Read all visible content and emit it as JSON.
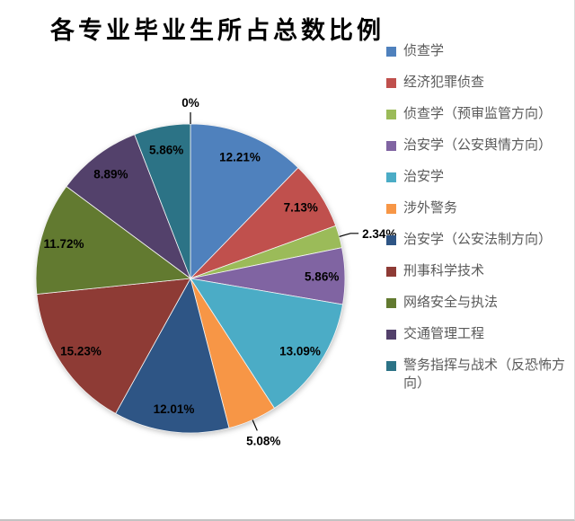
{
  "title": "各专业毕业生所占总数比例",
  "chart_data": {
    "type": "pie",
    "title": "各专业毕业生所占总数比例",
    "legend_position": "right",
    "legend_text_color": "#595959",
    "label_color": "#000000",
    "start_angle_deg": 0,
    "direction": "clockwise",
    "slices": [
      {
        "display": "0%",
        "value": 0,
        "color": "#4F81BD",
        "legend": false,
        "outside": true,
        "anchor": "top"
      },
      {
        "label": "侦查学",
        "display": "12.21%",
        "value": 12.21,
        "color": "#4F81BD"
      },
      {
        "label": "经济犯罪侦查",
        "display": "7.13%",
        "value": 7.13,
        "color": "#C0504D"
      },
      {
        "label": "侦查学（预审监管方向）",
        "display": "2.34%",
        "value": 2.34,
        "color": "#9BBB59",
        "outside": true,
        "anchor": "right"
      },
      {
        "label": "治安学（公安舆情方向）",
        "display": "5.86%",
        "value": 5.86,
        "color": "#8064A2"
      },
      {
        "label": "治安学",
        "display": "13.09%",
        "value": 13.09,
        "color": "#4BACC6"
      },
      {
        "label": "涉外警务",
        "display": "5.08%",
        "value": 5.08,
        "color": "#F79646",
        "outside": true,
        "anchor": "bottom"
      },
      {
        "label": "治安学（公安法制方向）",
        "display": "12.01%",
        "value": 12.01,
        "color": "#2E5585"
      },
      {
        "label": "刑事科学技术",
        "display": "15.23%",
        "value": 15.23,
        "color": "#8E3B35"
      },
      {
        "label": "网络安全与执法",
        "display": "11.72%",
        "value": 11.72,
        "color": "#627A30"
      },
      {
        "label": "交通管理工程",
        "display": "8.89%",
        "value": 8.89,
        "color": "#53416B"
      },
      {
        "label": "警务指挥与战术（反恐怖方向）",
        "display": "5.86%",
        "value": 5.86,
        "color": "#2C7386"
      }
    ]
  }
}
